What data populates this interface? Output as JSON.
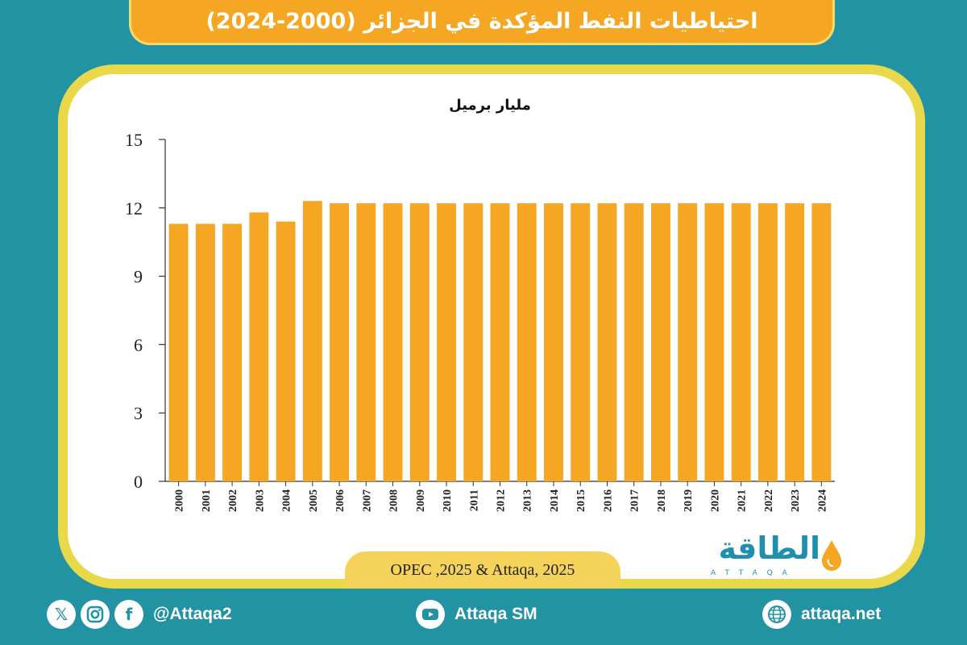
{
  "header": {
    "title": "احتياطيات النفط المؤكدة في الجزائر (2000-2024)"
  },
  "chart_data": {
    "type": "bar",
    "title": "احتياطيات النفط المؤكدة في الجزائر (2000-2024)",
    "ylabel": "مليار برميل",
    "xlabel": "",
    "categories": [
      "2000",
      "2001",
      "2002",
      "2003",
      "2004",
      "2005",
      "2006",
      "2007",
      "2008",
      "2009",
      "2010",
      "2011",
      "2012",
      "2013",
      "2014",
      "2015",
      "2016",
      "2017",
      "2018",
      "2019",
      "2020",
      "2021",
      "2022",
      "2023",
      "2024"
    ],
    "values": [
      11.3,
      11.3,
      11.3,
      11.8,
      11.4,
      12.3,
      12.2,
      12.2,
      12.2,
      12.2,
      12.2,
      12.2,
      12.2,
      12.2,
      12.2,
      12.2,
      12.2,
      12.2,
      12.2,
      12.2,
      12.2,
      12.2,
      12.2,
      12.2,
      12.2
    ],
    "ylim": [
      0,
      15
    ],
    "yticks": [
      0,
      3,
      6,
      9,
      12,
      15
    ],
    "grid": false,
    "bar_color": "#f5a623"
  },
  "source": "OPEC ,2025 & Attaqa, 2025",
  "logo": {
    "text": "الطاقة",
    "sub": "ATTAQA"
  },
  "footer": {
    "social_handle": "@Attaqa2",
    "youtube": "Attaqa SM",
    "website": "attaqa.net"
  },
  "colors": {
    "background": "#2293a3",
    "accent": "#f5a623",
    "frame": "#e9d84a"
  }
}
